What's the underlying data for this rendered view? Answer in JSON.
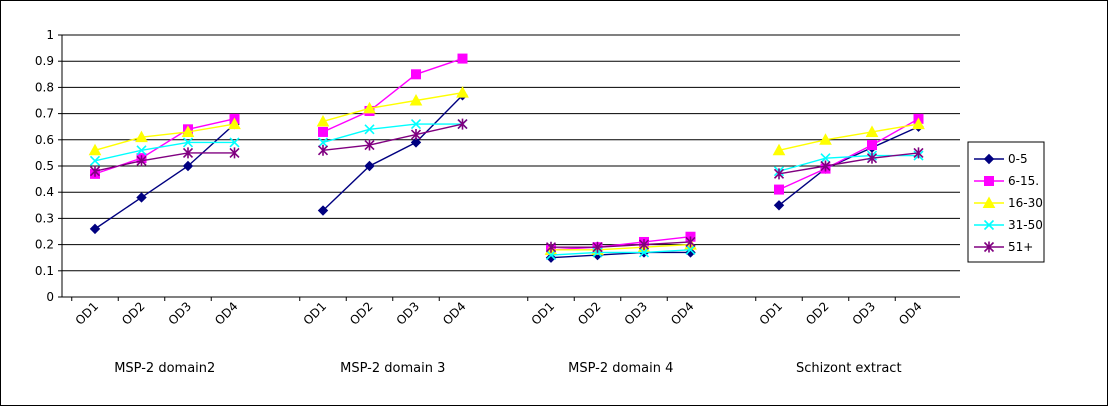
{
  "chart_data": {
    "type": "line",
    "title": "",
    "xlabel": "",
    "ylabel": "",
    "ylim": [
      0,
      1
    ],
    "yticks": [
      "0",
      "0.1",
      "0.2",
      "0.3",
      "0.4",
      "0.5",
      "0.6",
      "0.7",
      "0.8",
      "0.9",
      "1"
    ],
    "grid": "horizontal",
    "legend_position": "right",
    "groups": [
      {
        "label": "MSP-2 domain2",
        "categories": [
          "OD1",
          "OD2",
          "OD3",
          "OD4"
        ],
        "series": [
          {
            "name": "0-5",
            "color": "#000080",
            "marker": "diamond",
            "values": [
              0.26,
              0.38,
              0.5,
              0.66
            ]
          },
          {
            "name": "6-15.",
            "color": "#ff00ff",
            "marker": "square",
            "values": [
              0.47,
              0.53,
              0.64,
              0.68
            ]
          },
          {
            "name": "16-30",
            "color": "#ffff00",
            "marker": "triangle",
            "values": [
              0.56,
              0.61,
              0.63,
              0.66
            ]
          },
          {
            "name": "31-50",
            "color": "#00ffff",
            "marker": "x",
            "values": [
              0.52,
              0.56,
              0.59,
              0.59
            ]
          },
          {
            "name": "51+",
            "color": "#800080",
            "marker": "star",
            "values": [
              0.48,
              0.52,
              0.55,
              0.55
            ]
          }
        ]
      },
      {
        "label": "MSP-2 domain 3",
        "categories": [
          "OD1",
          "OD2",
          "OD3",
          "OD4"
        ],
        "series": [
          {
            "name": "0-5",
            "color": "#000080",
            "marker": "diamond",
            "values": [
              0.33,
              0.5,
              0.59,
              0.77
            ]
          },
          {
            "name": "6-15.",
            "color": "#ff00ff",
            "marker": "square",
            "values": [
              0.63,
              0.71,
              0.85,
              0.91
            ]
          },
          {
            "name": "16-30",
            "color": "#ffff00",
            "marker": "triangle",
            "values": [
              0.67,
              0.72,
              0.75,
              0.78
            ]
          },
          {
            "name": "31-50",
            "color": "#00ffff",
            "marker": "x",
            "values": [
              0.59,
              0.64,
              0.66,
              0.66
            ]
          },
          {
            "name": "51+",
            "color": "#800080",
            "marker": "star",
            "values": [
              0.56,
              0.58,
              0.62,
              0.66
            ]
          }
        ]
      },
      {
        "label": "MSP-2 domain 4",
        "categories": [
          "OD1",
          "OD2",
          "OD3",
          "OD4"
        ],
        "series": [
          {
            "name": "0-5",
            "color": "#000080",
            "marker": "diamond",
            "values": [
              0.15,
              0.16,
              0.17,
              0.17
            ]
          },
          {
            "name": "6-15.",
            "color": "#ff00ff",
            "marker": "square",
            "values": [
              0.18,
              0.19,
              0.21,
              0.23
            ]
          },
          {
            "name": "16-30",
            "color": "#ffff00",
            "marker": "triangle",
            "values": [
              0.18,
              0.18,
              0.19,
              0.2
            ]
          },
          {
            "name": "31-50",
            "color": "#00ffff",
            "marker": "x",
            "values": [
              0.16,
              0.17,
              0.17,
              0.18
            ]
          },
          {
            "name": "51+",
            "color": "#800080",
            "marker": "star",
            "values": [
              0.19,
              0.19,
              0.2,
              0.21
            ]
          }
        ]
      },
      {
        "label": "Schizont extract",
        "categories": [
          "OD1",
          "OD2",
          "OD3",
          "OD4"
        ],
        "series": [
          {
            "name": "0-5",
            "color": "#000080",
            "marker": "diamond",
            "values": [
              0.35,
              0.49,
              0.57,
              0.65
            ]
          },
          {
            "name": "6-15.",
            "color": "#ff00ff",
            "marker": "square",
            "values": [
              0.41,
              0.49,
              0.58,
              0.68
            ]
          },
          {
            "name": "16-30",
            "color": "#ffff00",
            "marker": "triangle",
            "values": [
              0.56,
              0.6,
              0.63,
              0.66
            ]
          },
          {
            "name": "31-50",
            "color": "#00ffff",
            "marker": "x",
            "values": [
              0.48,
              0.53,
              0.54,
              0.54
            ]
          },
          {
            "name": "51+",
            "color": "#800080",
            "marker": "star",
            "values": [
              0.47,
              0.5,
              0.53,
              0.55
            ]
          }
        ]
      }
    ],
    "legend": [
      {
        "name": "0-5",
        "color": "#000080",
        "marker": "diamond"
      },
      {
        "name": "6-15.",
        "color": "#ff00ff",
        "marker": "square"
      },
      {
        "name": "16-30",
        "color": "#ffff00",
        "marker": "triangle"
      },
      {
        "name": "31-50",
        "color": "#00ffff",
        "marker": "x"
      },
      {
        "name": "51+",
        "color": "#800080",
        "marker": "star"
      }
    ]
  }
}
